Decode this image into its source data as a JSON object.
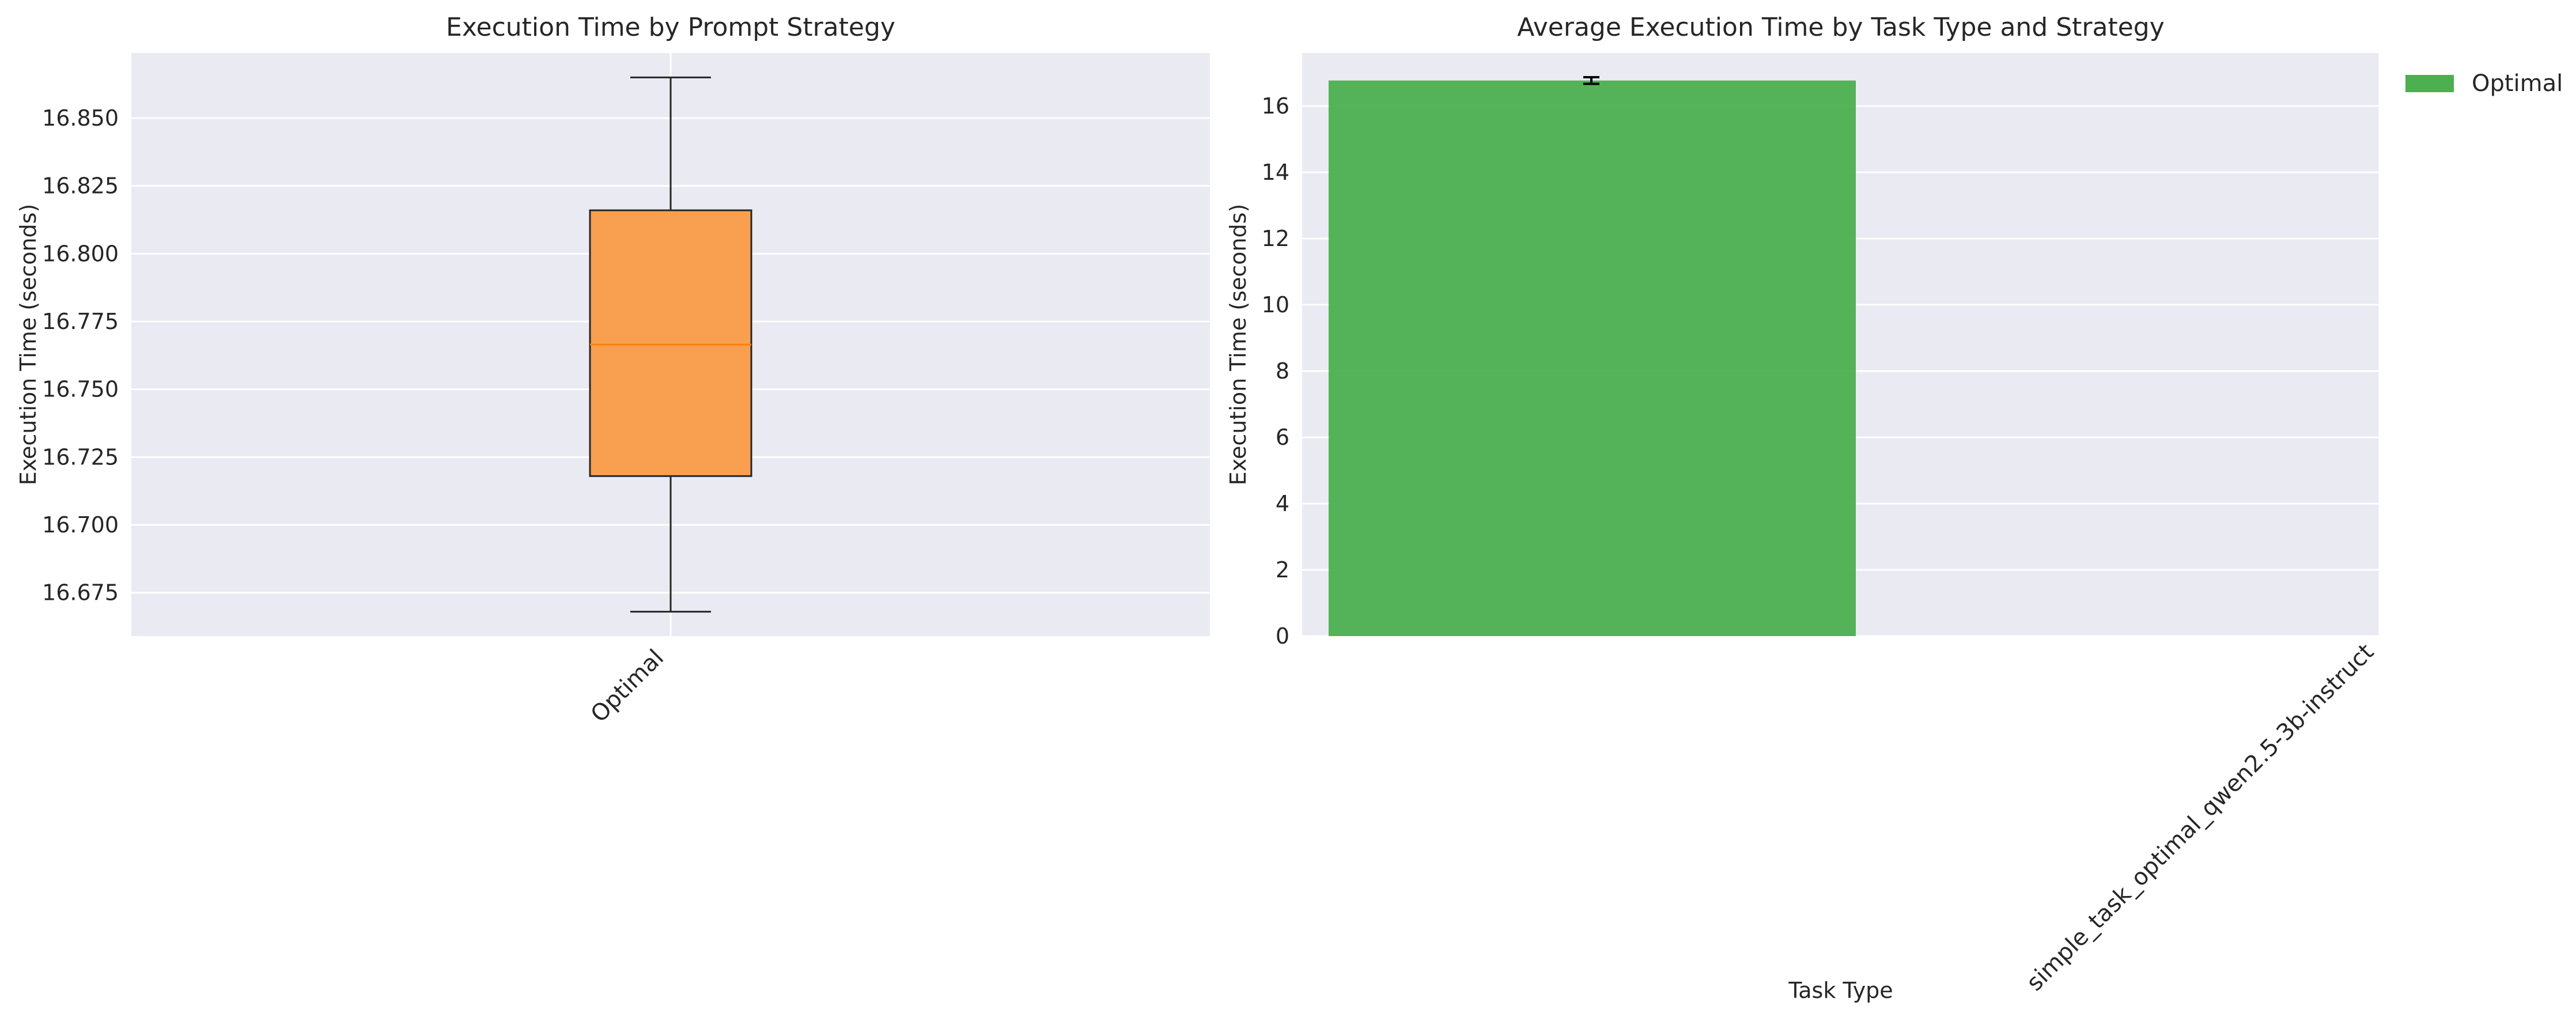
{
  "chart_data": [
    {
      "type": "box",
      "title": "Execution Time by Prompt Strategy",
      "xlabel": "",
      "ylabel": "Execution Time (seconds)",
      "categories": [
        "Optimal"
      ],
      "boxes": [
        {
          "category": "Optimal",
          "whisker_low": 16.668,
          "q1": 16.718,
          "median": 16.7665,
          "q3": 16.816,
          "whisker_high": 16.865,
          "color": "#f8a04f"
        }
      ],
      "ylim": [
        16.659,
        16.874
      ],
      "yticks": [
        16.675,
        16.7,
        16.725,
        16.75,
        16.775,
        16.8,
        16.825,
        16.85
      ],
      "ytick_labels": [
        "16.675",
        "16.700",
        "16.725",
        "16.750",
        "16.775",
        "16.800",
        "16.825",
        "16.850"
      ],
      "grid": true,
      "median_color": "#ff7f0e"
    },
    {
      "type": "bar",
      "title": "Average Execution Time by Task Type and Strategy",
      "xlabel": "Task Type",
      "ylabel": "Execution Time (seconds)",
      "categories": [
        "simple_task_optimal_qwen2.5-3b-instruct"
      ],
      "series": [
        {
          "name": "Optimal",
          "values": [
            16.77
          ],
          "errors": [
            0.1
          ],
          "color": "#4caf50"
        }
      ],
      "ylim": [
        0,
        17.6
      ],
      "yticks": [
        0,
        2,
        4,
        6,
        8,
        10,
        12,
        14,
        16
      ],
      "ytick_labels": [
        "0",
        "2",
        "4",
        "6",
        "8",
        "10",
        "12",
        "14",
        "16"
      ],
      "grid": true,
      "legend": "outside-top-right"
    }
  ],
  "colors": {
    "plot_background": "#eaeaf2",
    "grid": "#ffffff",
    "box_edge": "#262626"
  }
}
